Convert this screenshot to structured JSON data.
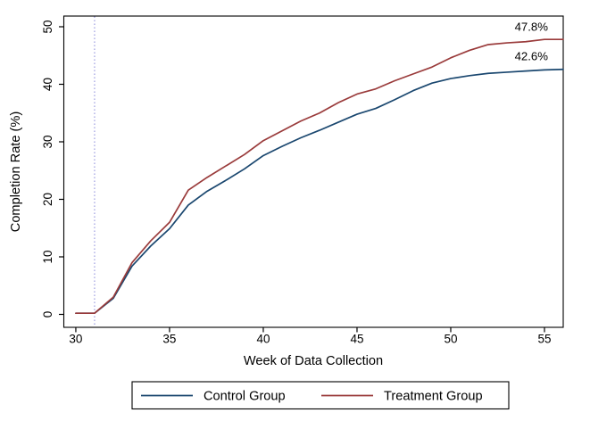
{
  "figure": {
    "background": "#ffffff",
    "axis_color": "#000000",
    "text_color": "#000000"
  },
  "chart_data": {
    "type": "line",
    "title": "",
    "xlabel": "Week of Data Collection",
    "ylabel": "Completion Rate (%)",
    "x": [
      30,
      31,
      32,
      33,
      34,
      35,
      36,
      37,
      38,
      39,
      40,
      41,
      42,
      43,
      44,
      45,
      46,
      47,
      48,
      49,
      50,
      51,
      52,
      53,
      54,
      55,
      56
    ],
    "series": [
      {
        "name": "Control Group",
        "color": "#1a476f",
        "values": [
          0.2,
          0.2,
          2.8,
          8.4,
          11.9,
          14.9,
          19.0,
          21.4,
          23.3,
          25.3,
          27.6,
          29.2,
          30.7,
          32.0,
          33.4,
          34.8,
          35.8,
          37.3,
          38.9,
          40.2,
          41.0,
          41.5,
          41.9,
          42.1,
          42.3,
          42.5,
          42.6
        ]
      },
      {
        "name": "Treatment Group",
        "color": "#9a3b3b",
        "values": [
          0.2,
          0.2,
          3.0,
          9.0,
          12.8,
          16.0,
          21.6,
          23.8,
          25.8,
          27.8,
          30.2,
          31.9,
          33.6,
          35.0,
          36.8,
          38.3,
          39.2,
          40.6,
          41.8,
          43.0,
          44.6,
          45.9,
          46.9,
          47.2,
          47.4,
          47.8,
          47.8
        ]
      }
    ],
    "xticks": [
      30,
      35,
      40,
      45,
      50,
      55
    ],
    "yticks": [
      0,
      10,
      20,
      30,
      40,
      50
    ],
    "xlim": [
      29.36,
      56
    ],
    "ylim": [
      -2.25,
      51.86
    ],
    "grid": false,
    "legend_position": "bottom",
    "reference_line": {
      "axis": "x",
      "value": 31,
      "style": "dotted",
      "color": "#8787d9"
    },
    "annotations": [
      {
        "text": "47.8%",
        "x": 54.3,
        "y": 50.0,
        "series": "Treatment Group"
      },
      {
        "text": "42.6%",
        "x": 54.3,
        "y": 44.9,
        "series": "Control Group"
      }
    ]
  }
}
